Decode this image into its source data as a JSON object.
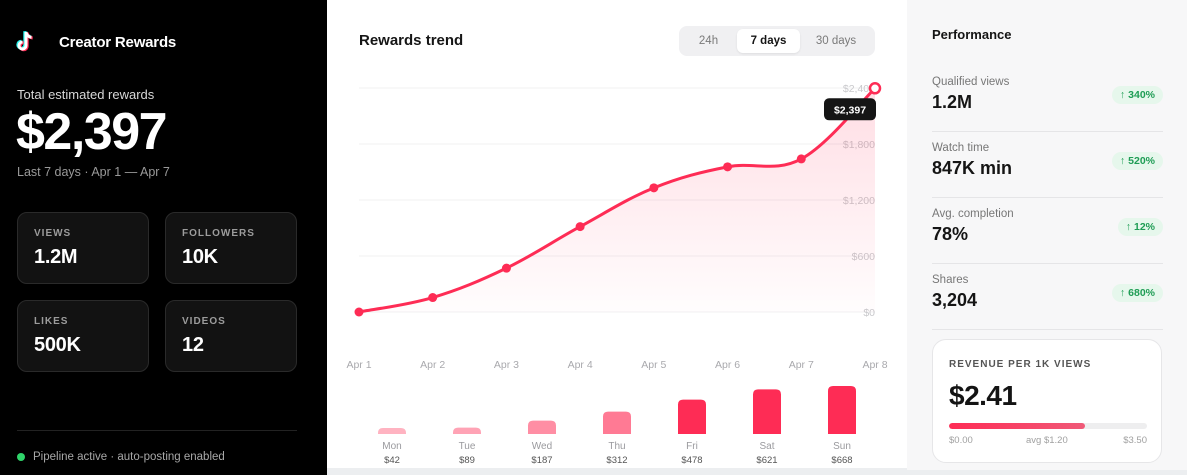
{
  "brand": {
    "title": "Creator Rewards",
    "logo_icon": "tiktok-icon"
  },
  "summary": {
    "label": "Total estimated rewards",
    "value": "$2,397",
    "range": "Last 7 days · Apr 1 — Apr 7"
  },
  "stats": [
    {
      "label": "VIEWS",
      "value": "1.2M"
    },
    {
      "label": "FOLLOWERS",
      "value": "10K"
    },
    {
      "label": "LIKES",
      "value": "500K"
    },
    {
      "label": "VIDEOS",
      "value": "12"
    }
  ],
  "status": {
    "text": "Pipeline active · auto-posting enabled",
    "color": "#2fd46a"
  },
  "trend": {
    "title": "Rewards trend",
    "ranges": [
      {
        "label": "24h",
        "active": false
      },
      {
        "label": "7 days",
        "active": true
      },
      {
        "label": "30 days",
        "active": false
      }
    ]
  },
  "chart_data": [
    {
      "type": "area",
      "title": "Rewards trend",
      "x": [
        "Apr 1",
        "Apr 2",
        "Apr 3",
        "Apr 4",
        "Apr 5",
        "Apr 6",
        "Apr 7",
        "Apr 8"
      ],
      "values": [
        0,
        155,
        470,
        915,
        1330,
        1555,
        1640,
        2397
      ],
      "y_ticks": [
        "$0",
        "$600",
        "$1,200",
        "$1,800",
        "$2,400"
      ],
      "ylim": [
        0,
        2400
      ],
      "grid": true,
      "tooltip": "$2,397",
      "color": "#fe2c55"
    },
    {
      "type": "bar",
      "categories": [
        "Mon",
        "Tue",
        "Wed",
        "Thu",
        "Fri",
        "Sat",
        "Sun"
      ],
      "labels": [
        "$42",
        "$89",
        "$187",
        "$312",
        "$478",
        "$621",
        "$668"
      ],
      "values": [
        42,
        89,
        187,
        312,
        478,
        621,
        668
      ],
      "colors": [
        "#ffb3c1",
        "#ffa3b5",
        "#ff8ea4",
        "#ff7a94",
        "#fe2c55",
        "#fe2c55",
        "#fe2c55"
      ]
    }
  ],
  "performance": {
    "title": "Performance",
    "metrics": [
      {
        "label": "Qualified views",
        "value": "1.2M",
        "change": "340%"
      },
      {
        "label": "Watch time",
        "value": "847K min",
        "change": "520%"
      },
      {
        "label": "Avg. completion",
        "value": "78%",
        "change": "12%"
      },
      {
        "label": "Shares",
        "value": "3,204",
        "change": "680%"
      }
    ],
    "up_arrow": "↑"
  },
  "revenue": {
    "label": "REVENUE PER 1K VIEWS",
    "value": "$2.41",
    "level": 0.689,
    "min": "$0.00",
    "avg": "avg $1.20",
    "max": "$3.50"
  }
}
